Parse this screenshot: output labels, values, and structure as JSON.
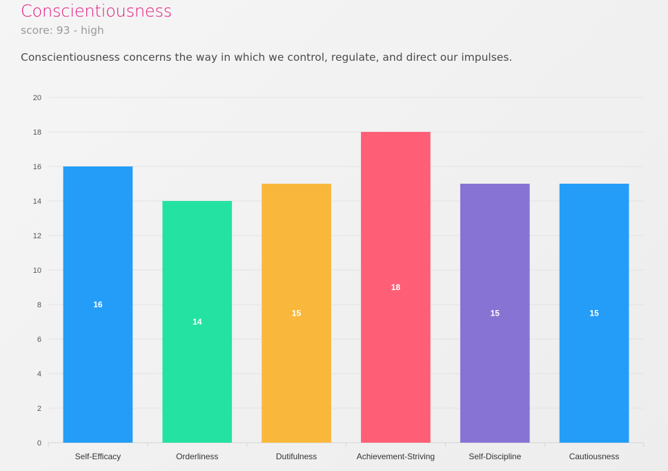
{
  "header": {
    "title": "Conscientiousness",
    "score_text": "score: 93 - high",
    "description": "Conscientiousness concerns the way in which we control, regulate, and direct our impulses."
  },
  "chart_data": {
    "type": "bar",
    "categories": [
      "Self-Efficacy",
      "Orderliness",
      "Dutifulness",
      "Achievement-Striving",
      "Self-Discipline",
      "Cautiousness"
    ],
    "values": [
      16,
      14,
      15,
      18,
      15,
      15
    ],
    "colors": [
      "#239df8",
      "#24e2a2",
      "#f9b83b",
      "#fe5f76",
      "#8773d4",
      "#239df8"
    ],
    "ylim": [
      0,
      20
    ],
    "yticks": [
      0,
      2,
      4,
      6,
      8,
      10,
      12,
      14,
      16,
      18,
      20
    ],
    "grid": true,
    "legend": "none",
    "data_labels": true,
    "title": "",
    "xlabel": "",
    "ylabel": ""
  }
}
